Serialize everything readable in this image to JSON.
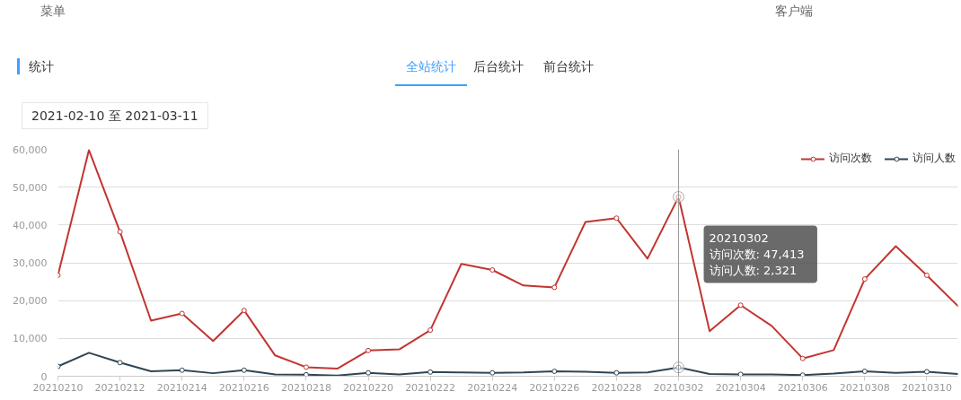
{
  "chart_data": {
    "type": "line",
    "title": "统计",
    "subtitle": "2021-02-10 至 2021-03-11",
    "annotations": [
      "菜单",
      "客户端",
      "全站统计",
      "后台统计",
      "前台统计",
      "20210302\n访问次数: 47,413\n访问人数: 2,321"
    ],
    "categories": [
      "20210210",
      null,
      "20210212",
      null,
      "20210214",
      null,
      "20210216",
      null,
      "20210218",
      null,
      "20210220",
      null,
      "20210222",
      null,
      "20210224",
      null,
      "20210226",
      null,
      "20210228",
      null,
      "20210302",
      null,
      "20210304",
      null,
      "20210306",
      null,
      "20210308",
      null,
      "20210310",
      null
    ],
    "series": [
      {
        "name": "访问次数",
        "color": "#c23531",
        "values": [
          26700,
          59800,
          38200,
          14700,
          16600,
          9300,
          17400,
          5500,
          2400,
          2000,
          6800,
          7100,
          12200,
          29700,
          28100,
          24000,
          23500,
          40800,
          41800,
          31100,
          47413,
          11900,
          18800,
          13300,
          4700,
          6900,
          25700,
          34400,
          26700,
          18600
        ]
      },
      {
        "name": "访问人数",
        "color": "#2f4554",
        "values": [
          2600,
          6200,
          3600,
          1300,
          1600,
          800,
          1600,
          500,
          400,
          200,
          900,
          500,
          1100,
          1000,
          900,
          1000,
          1300,
          1200,
          900,
          1000,
          2321,
          600,
          500,
          500,
          300,
          700,
          1300,
          900,
          1200,
          600
        ]
      }
    ],
    "ylim": [
      0,
      60000
    ],
    "yticks": [
      0,
      {
        "value": 10000,
        "label": "10,000"
      },
      {
        "value": 20000,
        "label": "20,000"
      },
      {
        "value": 30000,
        "label": "30,000"
      },
      {
        "value": 40000,
        "label": "40,000"
      },
      {
        "value": 50000,
        "label": "50,000"
      },
      {
        "value": 60000,
        "label": "60,000"
      }
    ],
    "grid": "y",
    "legend": "top right",
    "marker": "circle",
    "line_style": "solid",
    "ref_lines": [
      {
        "axis": "x",
        "value": "20210302",
        "color": "#999999"
      }
    ]
  }
}
